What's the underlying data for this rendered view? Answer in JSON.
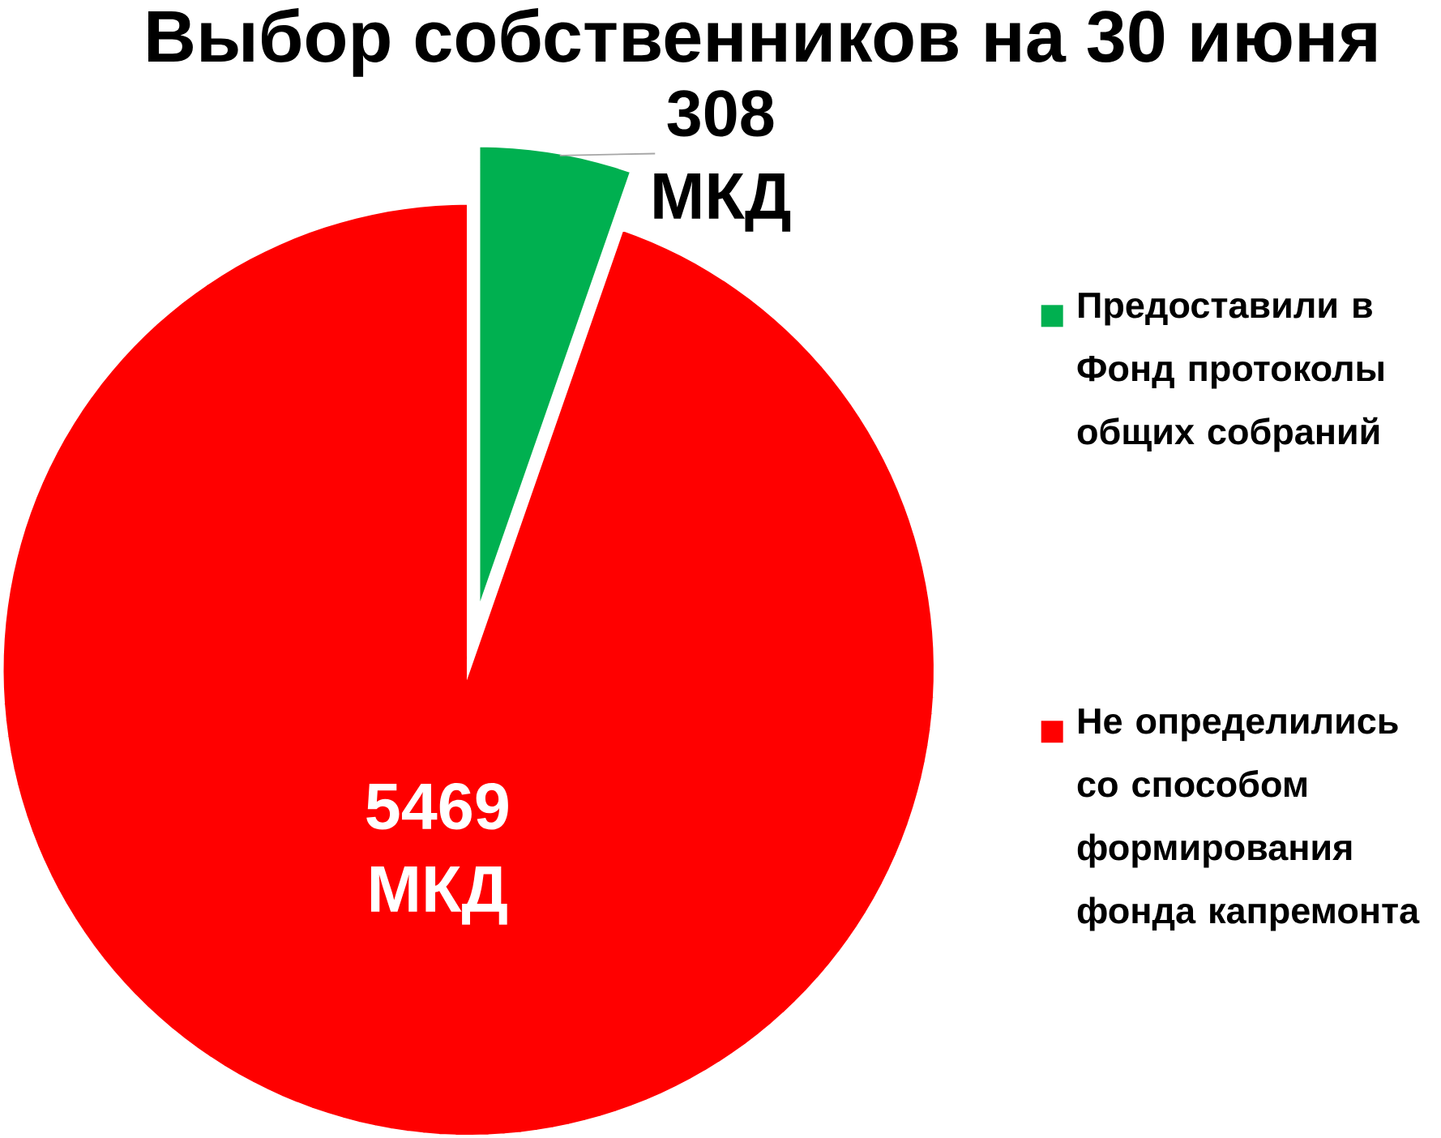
{
  "chart_data": {
    "type": "pie",
    "title": "Выбор собственников на 30 июня",
    "categories": [
      "Предоставили в Фонд протоколы общих собраний",
      "Не определились со способом формирования фонда капремонта"
    ],
    "values": [
      308,
      5469
    ],
    "colors": [
      "#00b050",
      "#ff0000"
    ],
    "value_labels": [
      "308 МКД",
      "5469 МКД"
    ],
    "legend": "right"
  }
}
